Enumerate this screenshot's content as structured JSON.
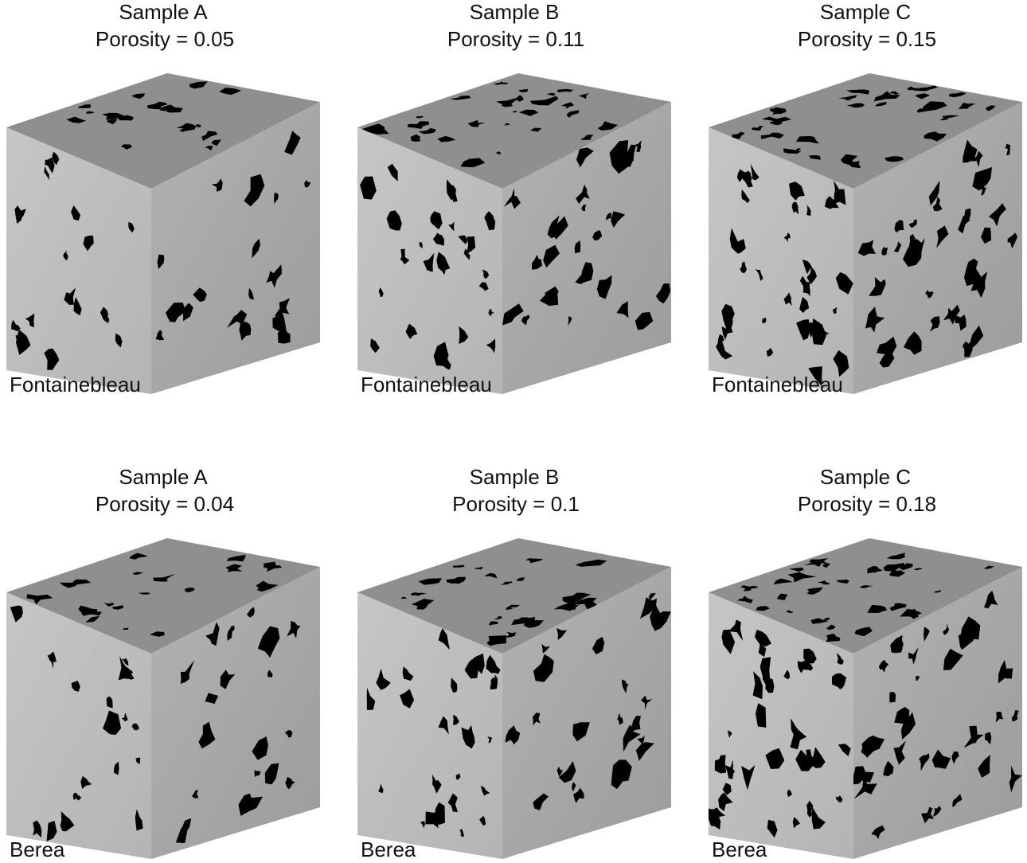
{
  "panels": [
    {
      "title": "Sample A",
      "porosity": "Porosity = 0.05",
      "rock": "Fontainebleau"
    },
    {
      "title": "Sample B",
      "porosity": "Porosity = 0.11",
      "rock": "Fontainebleau"
    },
    {
      "title": "Sample C",
      "porosity": "Porosity = 0.15",
      "rock": "Fontainebleau"
    },
    {
      "title": "Sample A",
      "porosity": "Porosity = 0.04",
      "rock": "Berea"
    },
    {
      "title": "Sample B",
      "porosity": "Porosity = 0.1",
      "rock": "Berea"
    },
    {
      "title": "Sample C",
      "porosity": "Porosity = 0.18",
      "rock": "Berea"
    }
  ]
}
